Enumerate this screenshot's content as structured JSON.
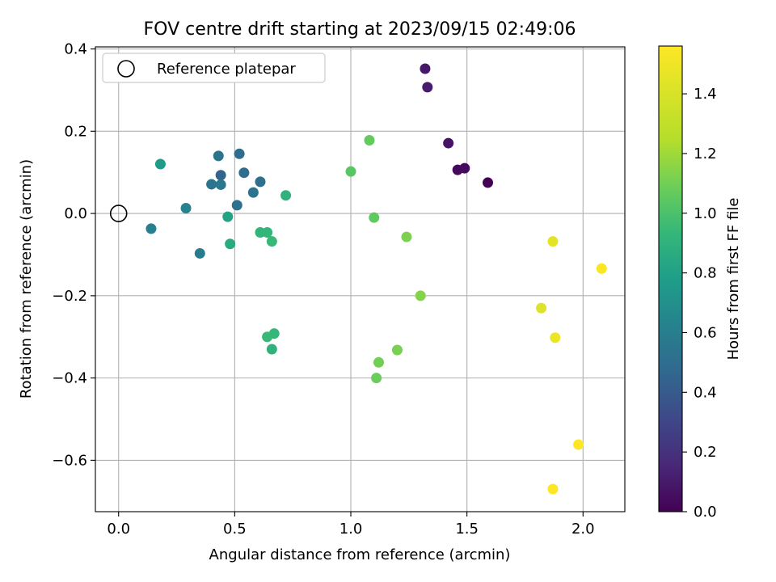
{
  "chart_data": {
    "type": "scatter",
    "title": "FOV centre drift starting at 2023/09/15 02:49:06",
    "xlabel": "Angular distance from reference (arcmin)",
    "ylabel": "Rotation from reference (arcmin)",
    "xlim": [
      -0.1,
      2.18
    ],
    "ylim": [
      -0.725,
      0.405
    ],
    "xticks": [
      0.0,
      0.5,
      1.0,
      1.5,
      2.0
    ],
    "xtick_labels": [
      "0.0",
      "0.5",
      "1.0",
      "1.5",
      "2.0"
    ],
    "yticks": [
      0.4,
      0.2,
      0.0,
      -0.2,
      -0.4,
      -0.6
    ],
    "ytick_labels": [
      "0.4",
      "0.2",
      "0.0",
      "−0.2",
      "−0.4",
      "−0.6"
    ],
    "grid": true,
    "legend": {
      "placement": "upper-left",
      "entries": [
        {
          "label": "Reference platepar",
          "marker": "open-circle",
          "x": 0.0,
          "y": 0.0
        }
      ]
    },
    "colorbar": {
      "label": "Hours from first FF file",
      "colormap": "viridis",
      "range": [
        0.0,
        1.56
      ],
      "ticks": [
        0.0,
        0.2,
        0.4,
        0.6,
        0.8,
        1.0,
        1.2,
        1.4
      ],
      "tick_labels": [
        "0.0",
        "0.2",
        "0.4",
        "0.6",
        "0.8",
        "1.0",
        "1.2",
        "1.4"
      ]
    },
    "points": [
      {
        "x": 1.32,
        "y": 0.352,
        "c": 0.1
      },
      {
        "x": 1.33,
        "y": 0.307,
        "c": 0.12
      },
      {
        "x": 1.42,
        "y": 0.171,
        "c": 0.08
      },
      {
        "x": 1.46,
        "y": 0.106,
        "c": 0.03
      },
      {
        "x": 1.49,
        "y": 0.11,
        "c": 0.04
      },
      {
        "x": 1.59,
        "y": 0.075,
        "c": 0.0
      },
      {
        "x": 0.18,
        "y": 0.12,
        "c": 0.85
      },
      {
        "x": 0.43,
        "y": 0.14,
        "c": 0.6
      },
      {
        "x": 0.52,
        "y": 0.145,
        "c": 0.55
      },
      {
        "x": 0.44,
        "y": 0.093,
        "c": 0.5
      },
      {
        "x": 0.54,
        "y": 0.099,
        "c": 0.55
      },
      {
        "x": 0.4,
        "y": 0.071,
        "c": 0.6
      },
      {
        "x": 0.44,
        "y": 0.07,
        "c": 0.62
      },
      {
        "x": 0.61,
        "y": 0.077,
        "c": 0.57
      },
      {
        "x": 0.58,
        "y": 0.051,
        "c": 0.6
      },
      {
        "x": 0.29,
        "y": 0.013,
        "c": 0.7
      },
      {
        "x": 0.51,
        "y": 0.02,
        "c": 0.58
      },
      {
        "x": 0.14,
        "y": -0.037,
        "c": 0.68
      },
      {
        "x": 0.35,
        "y": -0.097,
        "c": 0.65
      },
      {
        "x": 0.47,
        "y": -0.008,
        "c": 0.9
      },
      {
        "x": 0.48,
        "y": -0.074,
        "c": 0.95
      },
      {
        "x": 0.72,
        "y": 0.044,
        "c": 1.0
      },
      {
        "x": 0.61,
        "y": -0.046,
        "c": 1.02
      },
      {
        "x": 0.64,
        "y": -0.046,
        "c": 1.03
      },
      {
        "x": 0.66,
        "y": -0.068,
        "c": 1.05
      },
      {
        "x": 0.64,
        "y": -0.3,
        "c": 1.05
      },
      {
        "x": 0.67,
        "y": -0.292,
        "c": 1.04
      },
      {
        "x": 0.66,
        "y": -0.33,
        "c": 1.0
      },
      {
        "x": 1.0,
        "y": 0.102,
        "c": 1.15
      },
      {
        "x": 1.08,
        "y": 0.178,
        "c": 1.18
      },
      {
        "x": 1.1,
        "y": -0.01,
        "c": 1.17
      },
      {
        "x": 1.24,
        "y": -0.057,
        "c": 1.25
      },
      {
        "x": 1.3,
        "y": -0.2,
        "c": 1.27
      },
      {
        "x": 1.2,
        "y": -0.332,
        "c": 1.24
      },
      {
        "x": 1.12,
        "y": -0.362,
        "c": 1.22
      },
      {
        "x": 1.11,
        "y": -0.4,
        "c": 1.2
      },
      {
        "x": 1.87,
        "y": -0.068,
        "c": 1.5
      },
      {
        "x": 2.08,
        "y": -0.134,
        "c": 1.55
      },
      {
        "x": 1.82,
        "y": -0.23,
        "c": 1.48
      },
      {
        "x": 1.88,
        "y": -0.302,
        "c": 1.52
      },
      {
        "x": 1.98,
        "y": -0.562,
        "c": 1.56
      },
      {
        "x": 1.87,
        "y": -0.67,
        "c": 1.56
      }
    ]
  }
}
